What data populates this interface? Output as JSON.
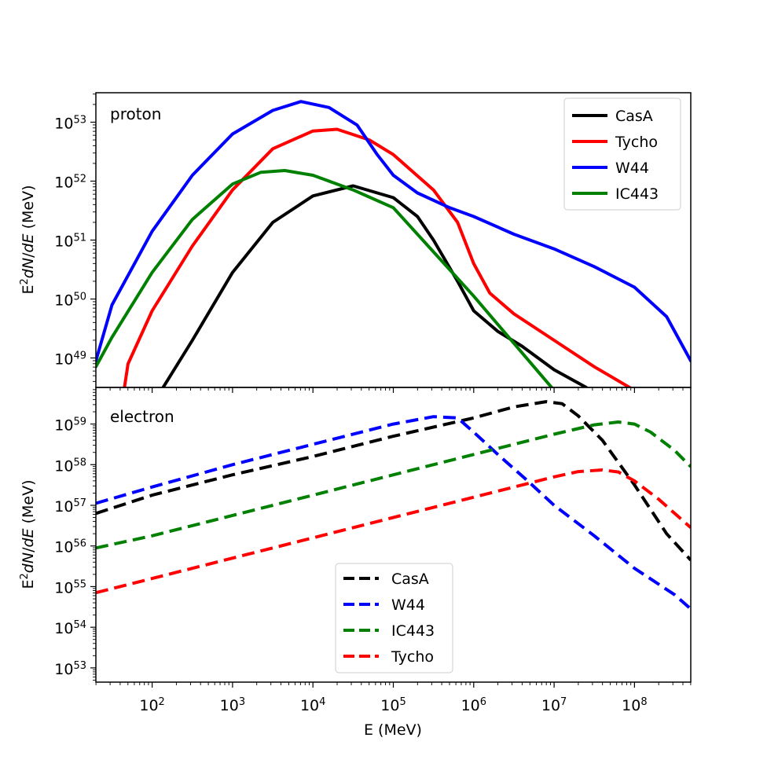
{
  "chart_data": [
    {
      "type": "line",
      "panel": "top",
      "label": "proton",
      "xlabel": "E (MeV)",
      "ylabel": "E^2dN/dE (MeV)",
      "xscale": "log",
      "yscale": "log",
      "xlim_exp": [
        1.3,
        8.7
      ],
      "ylim_exp": [
        48.5,
        53.5
      ],
      "ytick_exponents": [
        "49",
        "50",
        "51",
        "52",
        "53"
      ],
      "legend": "top-right",
      "legend_order": [
        "CasA",
        "Tycho",
        "W44",
        "IC443"
      ],
      "series": [
        {
          "name": "CasA",
          "color": "#000000",
          "dash": "solid",
          "log_x": [
            2.0,
            2.5,
            3.0,
            3.5,
            4.0,
            4.5,
            5.0,
            5.3,
            5.5,
            5.8,
            6.0,
            6.3,
            6.6,
            7.0,
            7.4
          ],
          "log_y": [
            48.2,
            49.3,
            50.45,
            51.3,
            51.75,
            51.92,
            51.72,
            51.4,
            51.0,
            50.3,
            49.8,
            49.45,
            49.2,
            48.8,
            48.5
          ]
        },
        {
          "name": "Tycho",
          "color": "#ff0000",
          "dash": "solid",
          "log_x": [
            1.6,
            1.7,
            2.0,
            2.5,
            3.0,
            3.5,
            4.0,
            4.3,
            4.7,
            5.0,
            5.5,
            5.8,
            6.0,
            6.2,
            6.5,
            7.0,
            7.5,
            8.0,
            8.1
          ],
          "log_y": [
            48.0,
            48.9,
            49.8,
            50.9,
            51.85,
            52.55,
            52.85,
            52.88,
            52.7,
            52.45,
            51.85,
            51.3,
            50.6,
            50.1,
            49.75,
            49.3,
            48.85,
            48.45,
            48.4
          ]
        },
        {
          "name": "W44",
          "color": "#0000ff",
          "dash": "solid",
          "log_x": [
            1.3,
            1.5,
            2.0,
            2.5,
            3.0,
            3.5,
            3.85,
            4.2,
            4.55,
            4.8,
            5.0,
            5.3,
            5.7,
            6.0,
            6.5,
            7.0,
            7.5,
            8.0,
            8.4,
            8.7
          ],
          "log_y": [
            48.95,
            49.9,
            51.15,
            52.1,
            52.8,
            53.2,
            53.35,
            53.25,
            52.95,
            52.45,
            52.1,
            51.8,
            51.55,
            51.4,
            51.1,
            50.85,
            50.55,
            50.2,
            49.7,
            48.95
          ]
        },
        {
          "name": "IC443",
          "color": "#008000",
          "dash": "solid",
          "log_x": [
            1.3,
            1.5,
            2.0,
            2.5,
            3.0,
            3.35,
            3.65,
            4.0,
            4.5,
            5.0,
            5.5,
            6.0,
            6.5,
            7.0
          ],
          "log_y": [
            48.85,
            49.35,
            50.45,
            51.35,
            51.95,
            52.15,
            52.18,
            52.1,
            51.85,
            51.55,
            50.8,
            50.05,
            49.25,
            48.45
          ]
        }
      ]
    },
    {
      "type": "line",
      "panel": "bottom",
      "label": "electron",
      "xlabel": "E (MeV)",
      "ylabel": "E^2dN/dE (MeV)",
      "xscale": "log",
      "yscale": "log",
      "xlim_exp": [
        1.3,
        8.7
      ],
      "ylim_exp": [
        52.65,
        59.9
      ],
      "ytick_exponents": [
        "53",
        "54",
        "55",
        "56",
        "57",
        "58",
        "59"
      ],
      "xtick_exponents": [
        "2",
        "3",
        "4",
        "5",
        "6",
        "7",
        "8"
      ],
      "legend": "lower-center",
      "legend_order": [
        "CasA",
        "W44",
        "IC443",
        "Tycho"
      ],
      "series": [
        {
          "name": "CasA",
          "color": "#000000",
          "dash": "dashed",
          "log_x": [
            1.3,
            2.0,
            3.0,
            4.0,
            5.0,
            6.0,
            6.5,
            6.9,
            7.1,
            7.3,
            7.6,
            8.0,
            8.4,
            8.7
          ],
          "log_y": [
            56.8,
            57.25,
            57.75,
            58.2,
            58.7,
            59.15,
            59.42,
            59.55,
            59.5,
            59.2,
            58.6,
            57.5,
            56.3,
            55.65
          ]
        },
        {
          "name": "W44",
          "color": "#0000ff",
          "dash": "dashed",
          "log_x": [
            1.3,
            2.0,
            3.0,
            4.0,
            5.0,
            5.5,
            5.8,
            6.0,
            6.3,
            6.7,
            7.0,
            7.5,
            8.0,
            8.5,
            8.7
          ],
          "log_y": [
            57.05,
            57.45,
            58.0,
            58.5,
            59.0,
            59.18,
            59.15,
            58.8,
            58.25,
            57.55,
            57.0,
            56.25,
            55.45,
            54.8,
            54.45
          ]
        },
        {
          "name": "IC443",
          "color": "#008000",
          "dash": "dashed",
          "log_x": [
            1.3,
            2.0,
            3.0,
            4.0,
            5.0,
            6.0,
            7.0,
            7.5,
            7.8,
            8.0,
            8.2,
            8.5,
            8.7
          ],
          "log_y": [
            55.95,
            56.25,
            56.75,
            57.25,
            57.75,
            58.25,
            58.75,
            58.98,
            59.05,
            59.0,
            58.8,
            58.35,
            57.95
          ]
        },
        {
          "name": "Tycho",
          "color": "#ff0000",
          "dash": "dashed",
          "log_x": [
            1.3,
            2.0,
            3.0,
            4.0,
            5.0,
            6.0,
            7.0,
            7.3,
            7.6,
            7.8,
            8.0,
            8.3,
            8.5,
            8.7
          ],
          "log_y": [
            54.85,
            55.2,
            55.7,
            56.2,
            56.7,
            57.2,
            57.7,
            57.83,
            57.87,
            57.82,
            57.6,
            57.15,
            56.8,
            56.45
          ]
        }
      ]
    }
  ]
}
